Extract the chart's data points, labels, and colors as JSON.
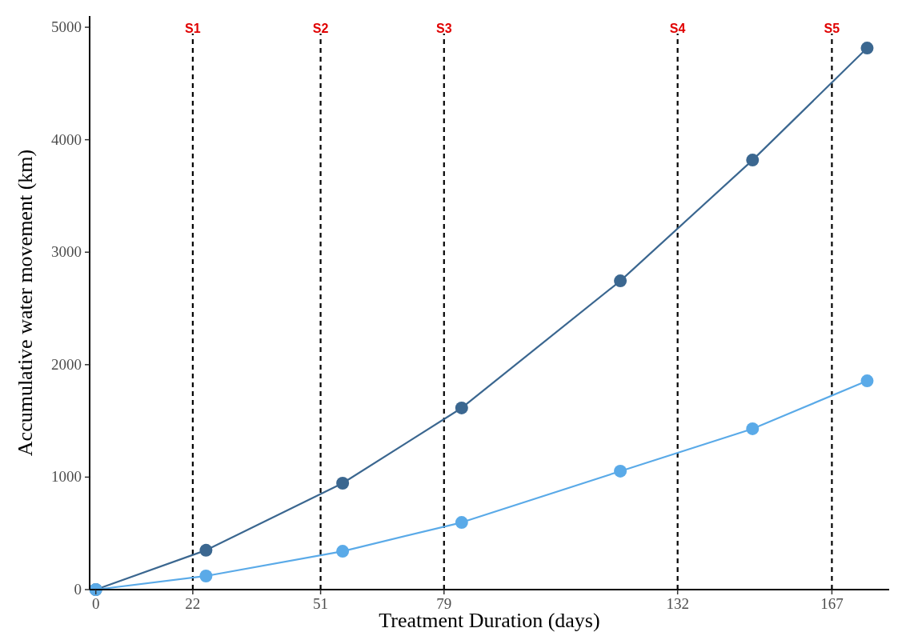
{
  "chart_data": {
    "type": "line",
    "xlabel": "Treatment Duration (days)",
    "ylabel": "Accumulative water movement (km)",
    "x": [
      0,
      25,
      56,
      83,
      119,
      149,
      175
    ],
    "series": [
      {
        "color": "#3b6790",
        "values": [
          0,
          350,
          946,
          1615,
          2745,
          3819,
          4815
        ]
      },
      {
        "color": "#5aaae8",
        "values": [
          0,
          121,
          341,
          597,
          1053,
          1430,
          1856
        ]
      }
    ],
    "xlim": [
      -1.4,
      180
    ],
    "ylim": [
      0,
      5100
    ],
    "xticks": [
      0,
      22,
      51,
      79,
      132,
      167
    ],
    "yticks": [
      0,
      1000,
      2000,
      3000,
      4000,
      5000
    ],
    "ref_lines": [
      {
        "axis": "x",
        "value": 22,
        "label": "S1",
        "color": "#000000",
        "line_style": "dashed"
      },
      {
        "axis": "x",
        "value": 51,
        "label": "S2",
        "color": "#000000",
        "line_style": "dashed"
      },
      {
        "axis": "x",
        "value": 79,
        "label": "S3",
        "color": "#000000",
        "line_style": "dashed"
      },
      {
        "axis": "x",
        "value": 132,
        "label": "S4",
        "color": "#000000",
        "line_style": "dashed"
      },
      {
        "axis": "x",
        "value": 167,
        "label": "S5",
        "color": "#000000",
        "line_style": "dashed"
      }
    ],
    "grid": false,
    "marker": "circle",
    "line_style": "solid"
  }
}
